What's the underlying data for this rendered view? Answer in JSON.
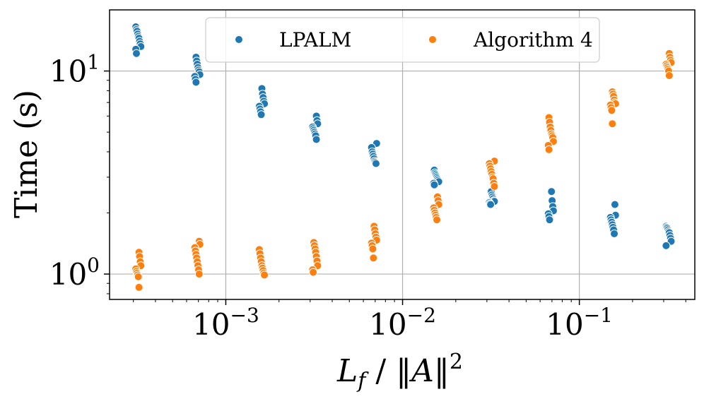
{
  "chart_data": {
    "type": "scatter",
    "title": "",
    "xlabel": "L_f / ||A||^2",
    "ylabel": "Time (s)",
    "xscale": "log",
    "yscale": "log",
    "xlim": [
      0.00022,
      0.45
    ],
    "ylim": [
      0.75,
      20
    ],
    "grid": true,
    "legend_position": "top",
    "x_ticks": [
      {
        "value": 0.001,
        "base": "10",
        "exp": "−3"
      },
      {
        "value": 0.01,
        "base": "10",
        "exp": "−2"
      },
      {
        "value": 0.1,
        "base": "10",
        "exp": "−1"
      }
    ],
    "y_ticks": [
      {
        "value": 1,
        "base": "10",
        "exp": "0"
      },
      {
        "value": 10,
        "base": "10",
        "exp": "1"
      }
    ],
    "series": [
      {
        "name": "LPALM",
        "color": "#1f77b4",
        "groups": [
          {
            "x": 0.00032,
            "values": [
              16.5,
              16.0,
              15.7,
              15.2,
              14.8,
              14.5,
              14.0,
              13.6,
              13.2,
              12.8,
              12.2
            ]
          },
          {
            "x": 0.00069,
            "values": [
              11.7,
              11.2,
              10.8,
              10.4,
              10.1,
              9.9,
              9.6,
              9.4,
              9.1,
              8.8
            ]
          },
          {
            "x": 0.0016,
            "values": [
              8.2,
              7.7,
              7.4,
              7.1,
              6.9,
              6.7,
              6.5,
              6.3,
              6.1
            ]
          },
          {
            "x": 0.0032,
            "values": [
              6.0,
              5.7,
              5.5,
              5.3,
              5.2,
              5.1,
              5.0,
              4.9,
              4.8,
              4.6
            ]
          },
          {
            "x": 0.0069,
            "values": [
              4.4,
              4.2,
              4.0,
              3.9,
              3.8,
              3.7,
              3.6,
              3.55,
              3.5
            ]
          },
          {
            "x": 0.0155,
            "values": [
              3.25,
              3.15,
              3.1,
              3.05,
              3.0,
              2.95,
              2.9,
              2.85,
              2.8,
              2.75
            ]
          },
          {
            "x": 0.032,
            "values": [
              2.55,
              2.45,
              2.4,
              2.35,
              2.3,
              2.28,
              2.25,
              2.22,
              2.2
            ]
          },
          {
            "x": 0.069,
            "values": [
              2.55,
              2.3,
              2.15,
              2.05,
              1.98,
              1.92,
              1.85
            ]
          },
          {
            "x": 0.155,
            "values": [
              2.2,
              1.95,
              1.9,
              1.85,
              1.8,
              1.75,
              1.7,
              1.65,
              1.58
            ]
          },
          {
            "x": 0.32,
            "values": [
              1.72,
              1.7,
              1.68,
              1.65,
              1.62,
              1.6,
              1.55,
              1.5,
              1.45,
              1.38
            ]
          }
        ]
      },
      {
        "name": "Algorithm 4",
        "color": "#ff7f0e",
        "groups": [
          {
            "x": 0.00032,
            "values": [
              1.28,
              1.22,
              1.15,
              1.1,
              1.06,
              1.03,
              1.01,
              0.99,
              0.97,
              0.86
            ]
          },
          {
            "x": 0.00069,
            "values": [
              1.45,
              1.4,
              1.35,
              1.3,
              1.25,
              1.2,
              1.15,
              1.1,
              1.05,
              1.0
            ]
          },
          {
            "x": 0.0016,
            "values": [
              1.32,
              1.26,
              1.2,
              1.15,
              1.1,
              1.07,
              1.04,
              1.01,
              0.99
            ]
          },
          {
            "x": 0.0032,
            "values": [
              1.43,
              1.38,
              1.33,
              1.28,
              1.22,
              1.16,
              1.1,
              1.05,
              1.02
            ]
          },
          {
            "x": 0.0069,
            "values": [
              1.72,
              1.65,
              1.58,
              1.52,
              1.47,
              1.42,
              1.38,
              1.33,
              1.2
            ]
          },
          {
            "x": 0.0155,
            "values": [
              2.4,
              2.3,
              2.2,
              2.12,
              2.06,
              2.0,
              1.95,
              1.9,
              1.85
            ]
          },
          {
            "x": 0.032,
            "values": [
              3.6,
              3.5,
              3.4,
              3.3,
              3.2,
              3.1,
              3.0,
              2.95,
              2.8,
              2.7
            ]
          },
          {
            "x": 0.069,
            "values": [
              5.9,
              5.6,
              5.3,
              5.1,
              4.9,
              4.8,
              4.7,
              4.5,
              4.3,
              4.1
            ]
          },
          {
            "x": 0.155,
            "values": [
              7.9,
              7.7,
              7.5,
              7.2,
              7.0,
              6.9,
              6.8,
              6.6,
              6.4,
              5.5
            ]
          },
          {
            "x": 0.32,
            "values": [
              12.2,
              11.7,
              11.3,
              11.0,
              10.8,
              10.6,
              10.4,
              10.2,
              10.0,
              9.5
            ]
          }
        ]
      }
    ]
  }
}
